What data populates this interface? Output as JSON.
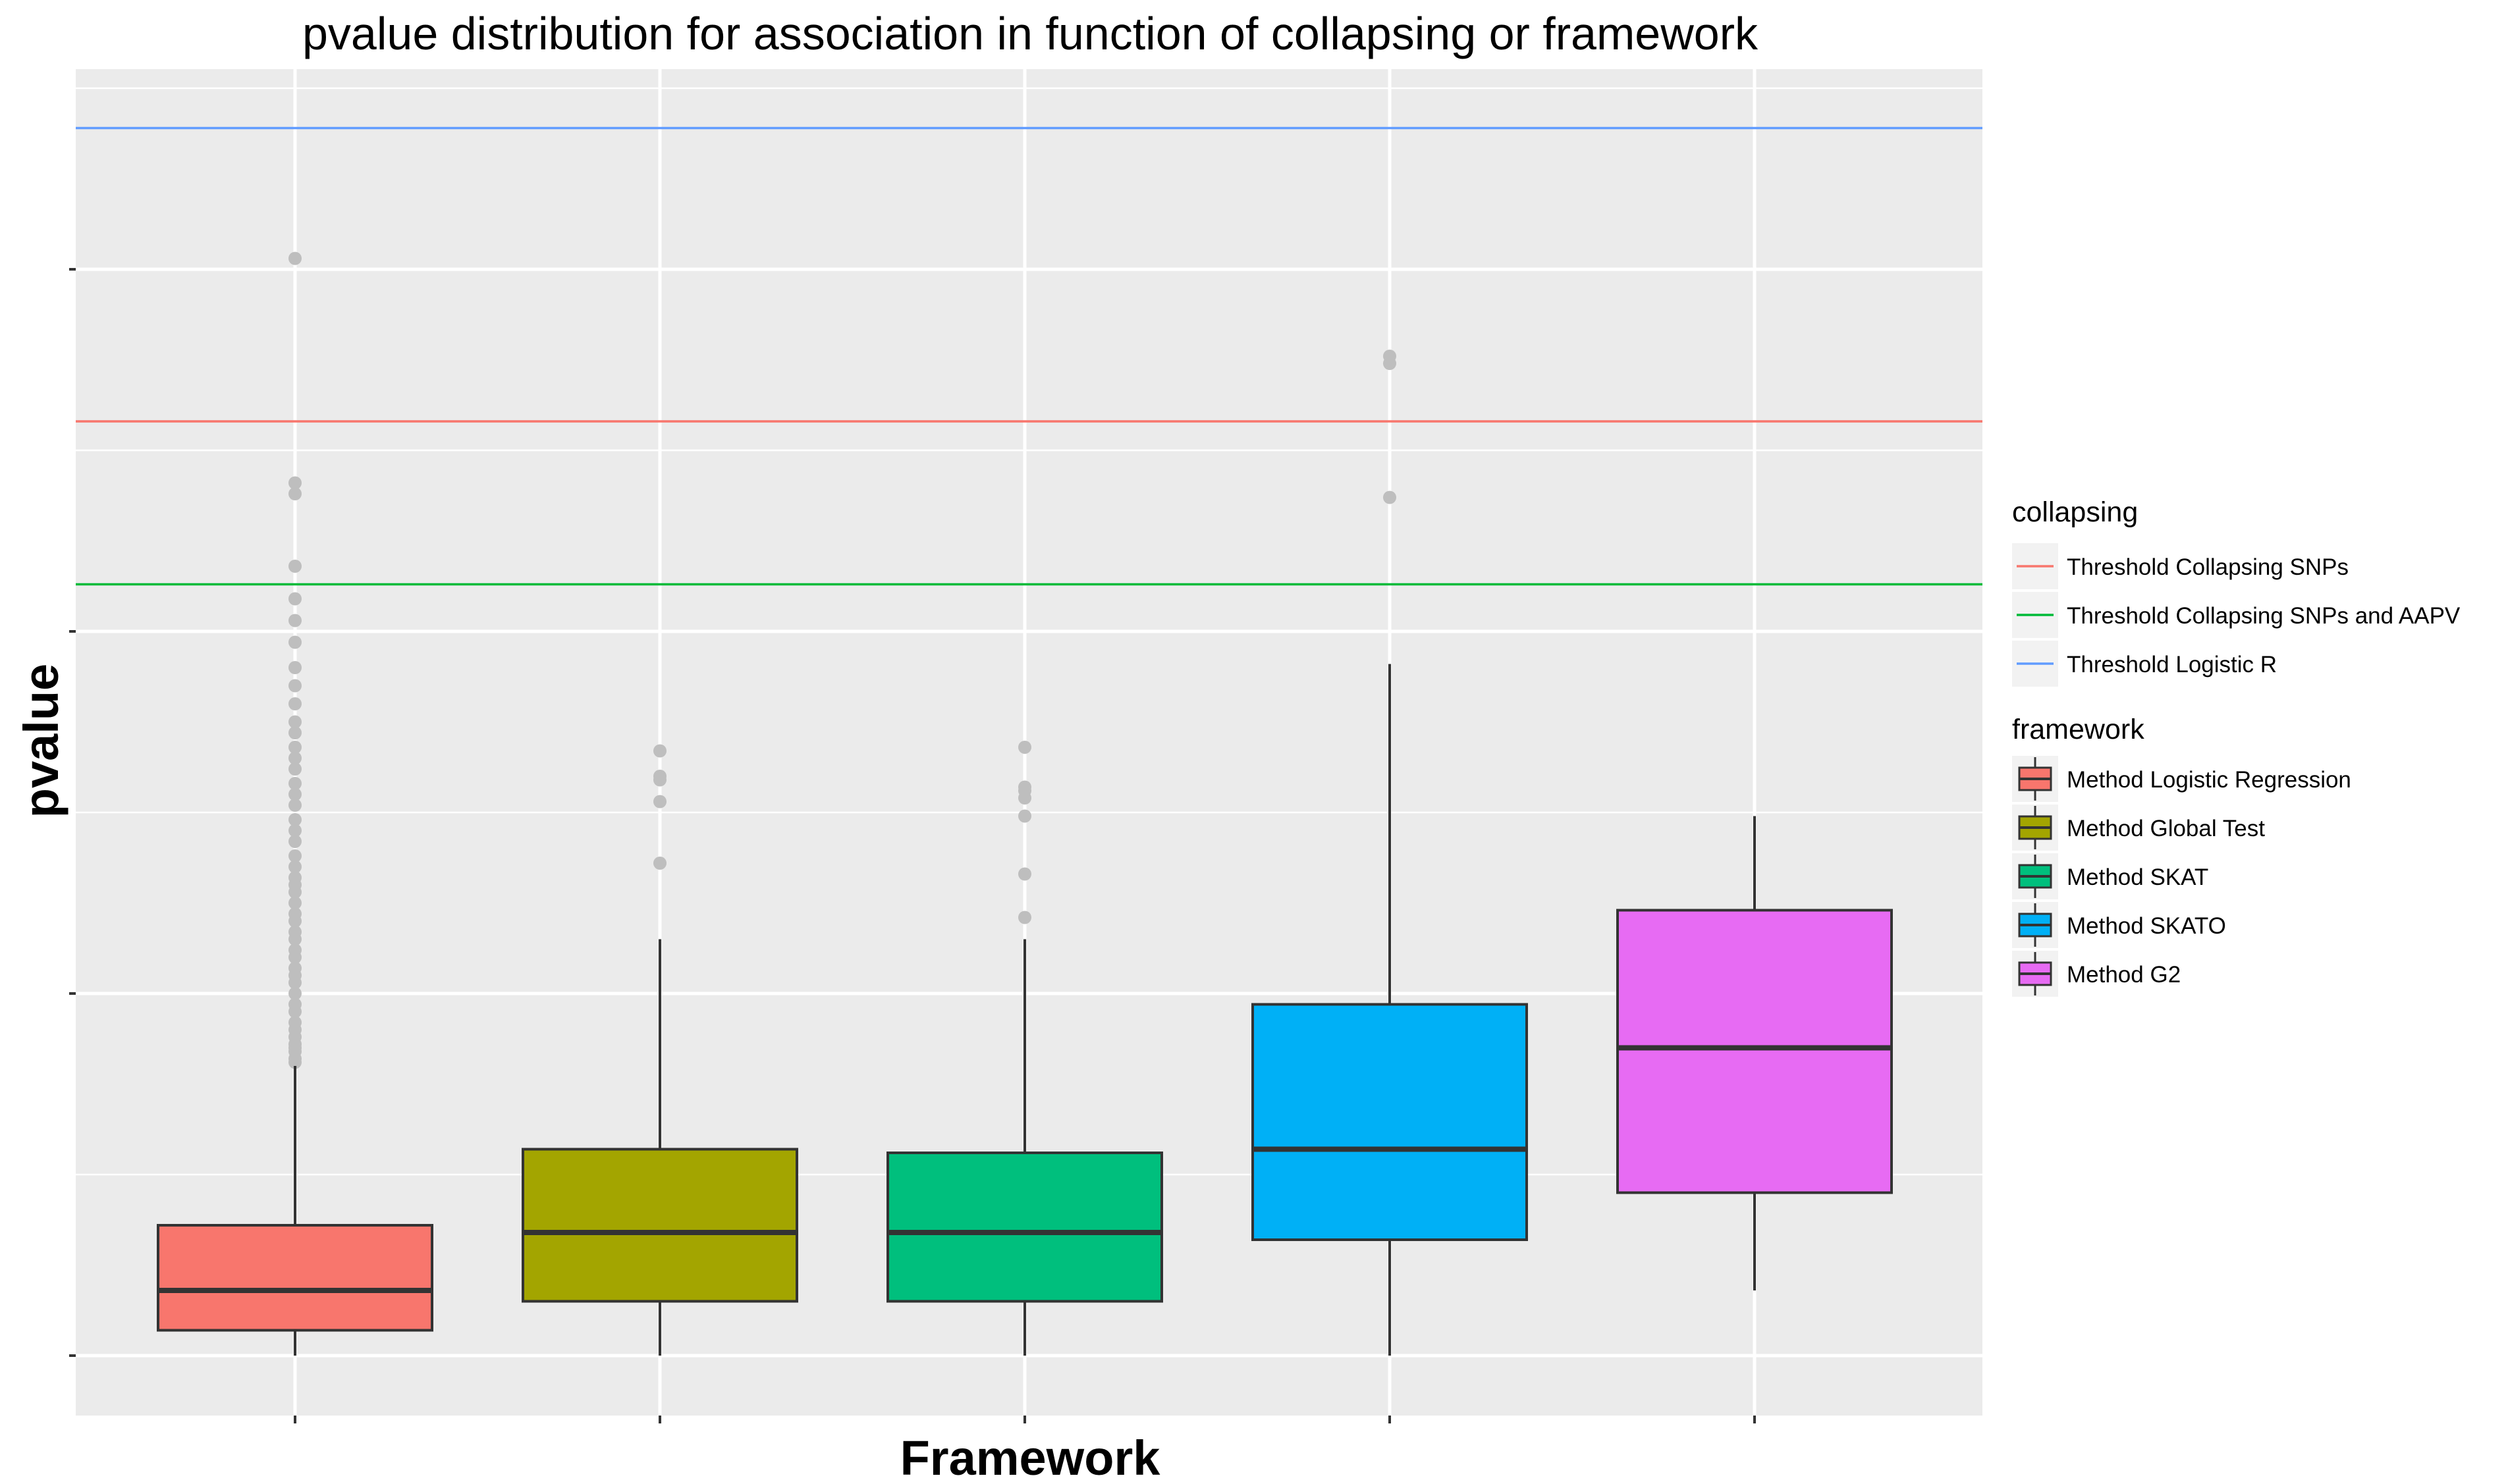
{
  "chart_data": {
    "type": "box",
    "title": "pvalue distribution for association in function of collapsing or framework",
    "xlabel": "Framework",
    "ylabel": "pvalue",
    "y_tick_labels_shown": false,
    "x_tick_labels_shown": false,
    "ylim": [
      -0.15,
      3.58
    ],
    "y_ticks": [
      0,
      1,
      2,
      3
    ],
    "grid": true,
    "background": "#EBEBEB",
    "categories": [
      "Method  Logistic Regression",
      "Method  Global Test",
      "Method  SKAT",
      "Method  SKATO",
      "Method  G2"
    ],
    "boxes": [
      {
        "name": "Method  Logistic Regression",
        "color": "#F8766D",
        "whisker_low": 0.0,
        "q1": 0.07,
        "median": 0.18,
        "q3": 0.36,
        "whisker_high": 0.8,
        "outliers": [
          0.81,
          0.82,
          0.84,
          0.85,
          0.86,
          0.88,
          0.9,
          0.92,
          0.95,
          0.97,
          1.0,
          1.03,
          1.05,
          1.07,
          1.1,
          1.12,
          1.15,
          1.17,
          1.2,
          1.22,
          1.25,
          1.28,
          1.3,
          1.32,
          1.35,
          1.38,
          1.42,
          1.45,
          1.48,
          1.52,
          1.55,
          1.58,
          1.62,
          1.65,
          1.68,
          1.72,
          1.75,
          1.8,
          1.85,
          1.9,
          1.97,
          2.03,
          2.09,
          2.18,
          2.38,
          2.41,
          3.03
        ]
      },
      {
        "name": "Method  Global Test",
        "color": "#A3A500",
        "whisker_low": 0.0,
        "q1": 0.15,
        "median": 0.34,
        "q3": 0.57,
        "whisker_high": 1.15,
        "outliers": [
          1.36,
          1.53,
          1.59,
          1.6,
          1.67
        ]
      },
      {
        "name": "Method  SKAT",
        "color": "#00BF7D",
        "whisker_low": 0.0,
        "q1": 0.15,
        "median": 0.34,
        "q3": 0.56,
        "whisker_high": 1.15,
        "outliers": [
          1.21,
          1.33,
          1.49,
          1.54,
          1.56,
          1.57,
          1.68
        ]
      },
      {
        "name": "Method  SKATO",
        "color": "#00B0F6",
        "whisker_low": 0.0,
        "q1": 0.32,
        "median": 0.57,
        "q3": 0.97,
        "whisker_high": 1.91,
        "outliers": [
          2.37,
          2.74,
          2.76
        ]
      },
      {
        "name": "Method  G2",
        "color": "#E76BF3",
        "whisker_low": 0.18,
        "q1": 0.45,
        "median": 0.85,
        "q3": 1.23,
        "whisker_high": 1.49,
        "outliers": []
      }
    ],
    "hlines": [
      {
        "name": "Threshold Collapsing SNPs",
        "color": "#F8766D",
        "y": 2.58
      },
      {
        "name": "Threshold Collapsing SNPs and AAPV",
        "color": "#00BA38",
        "y": 2.13
      },
      {
        "name": "Threshold Logistic R",
        "color": "#619CFF",
        "y": 3.39
      }
    ],
    "legend": {
      "placement": "right",
      "collapsing_title": "collapsing",
      "framework_title": "framework"
    }
  }
}
